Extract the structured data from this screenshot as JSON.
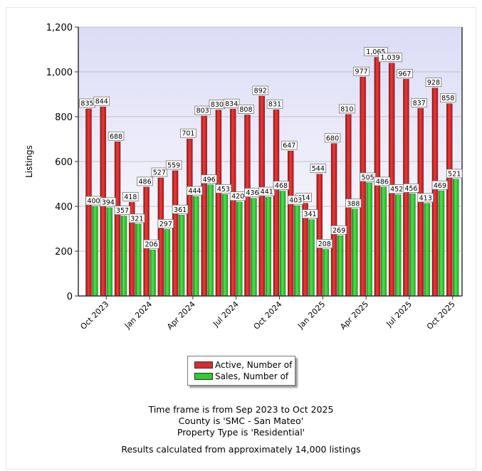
{
  "chart_data": {
    "type": "bar",
    "title": "",
    "xlabel": "",
    "ylabel": "Listings",
    "ylim": [
      0,
      1200
    ],
    "yticks": [
      0,
      200,
      400,
      600,
      800,
      1000,
      1200
    ],
    "ytick_labels": [
      "0",
      "200",
      "400",
      "600",
      "800",
      "1,000",
      "1,200"
    ],
    "grid": true,
    "categories": [
      "Sep 2023",
      "Oct 2023",
      "Nov 2023",
      "Dec 2023",
      "Jan 2024",
      "Feb 2024",
      "Mar 2024",
      "Apr 2024",
      "May 2024",
      "Jun 2024",
      "Jul 2024",
      "Aug 2024",
      "Sep 2024",
      "Oct 2024",
      "Nov 2024",
      "Dec 2024",
      "Jan 2025",
      "Feb 2025",
      "Mar 2025",
      "Apr 2025",
      "May 2025",
      "Jun 2025",
      "Jul 2025",
      "Aug 2025",
      "Sep 2025",
      "Oct 2025"
    ],
    "xtick_labels": [
      {
        "index": 1,
        "label": "Oct 2023"
      },
      {
        "index": 4,
        "label": "Jan 2024"
      },
      {
        "index": 7,
        "label": "Apr 2024"
      },
      {
        "index": 10,
        "label": "Jul 2024"
      },
      {
        "index": 13,
        "label": "Oct 2024"
      },
      {
        "index": 16,
        "label": "Jan 2025"
      },
      {
        "index": 19,
        "label": "Apr 2025"
      },
      {
        "index": 22,
        "label": "Jul 2025"
      },
      {
        "index": 25,
        "label": "Oct 2025"
      }
    ],
    "series": [
      {
        "name": "Active, Number of",
        "color": "#d92b2b",
        "values": [
          835,
          844,
          688,
          418,
          486,
          527,
          559,
          701,
          803,
          830,
          834,
          808,
          892,
          831,
          647,
          414,
          544,
          680,
          810,
          977,
          1065,
          1039,
          967,
          837,
          928,
          858
        ],
        "labels": [
          "835",
          "844",
          "688",
          "418",
          "486",
          "527",
          "559",
          "701",
          "803",
          "830",
          "834",
          "808",
          "892",
          "831",
          "647",
          "414",
          "544",
          "680",
          "810",
          "977",
          "1,065",
          "1,039",
          "967",
          "837",
          "928",
          "858"
        ]
      },
      {
        "name": "Sales, Number of",
        "color": "#2ecc2e",
        "values": [
          400,
          394,
          357,
          321,
          206,
          297,
          361,
          444,
          496,
          453,
          420,
          436,
          441,
          468,
          403,
          341,
          208,
          269,
          388,
          505,
          486,
          452,
          456,
          413,
          469,
          521
        ],
        "labels": [
          "400",
          "394",
          "357",
          "321",
          "206",
          "297",
          "361",
          "444",
          "496",
          "453",
          "420",
          "436",
          "441",
          "468",
          "403",
          "341",
          "208",
          "269",
          "388",
          "505",
          "486",
          "452",
          "456",
          "413",
          "469",
          "521"
        ]
      }
    ],
    "legend_position": "bottom"
  },
  "captions": {
    "timeframe": "Time frame is from Sep 2023 to Oct 2025",
    "county": "County is 'SMC - San Mateo'",
    "property_type": "Property Type is 'Residential'",
    "results": "Results calculated from approximately 14,000 listings"
  }
}
